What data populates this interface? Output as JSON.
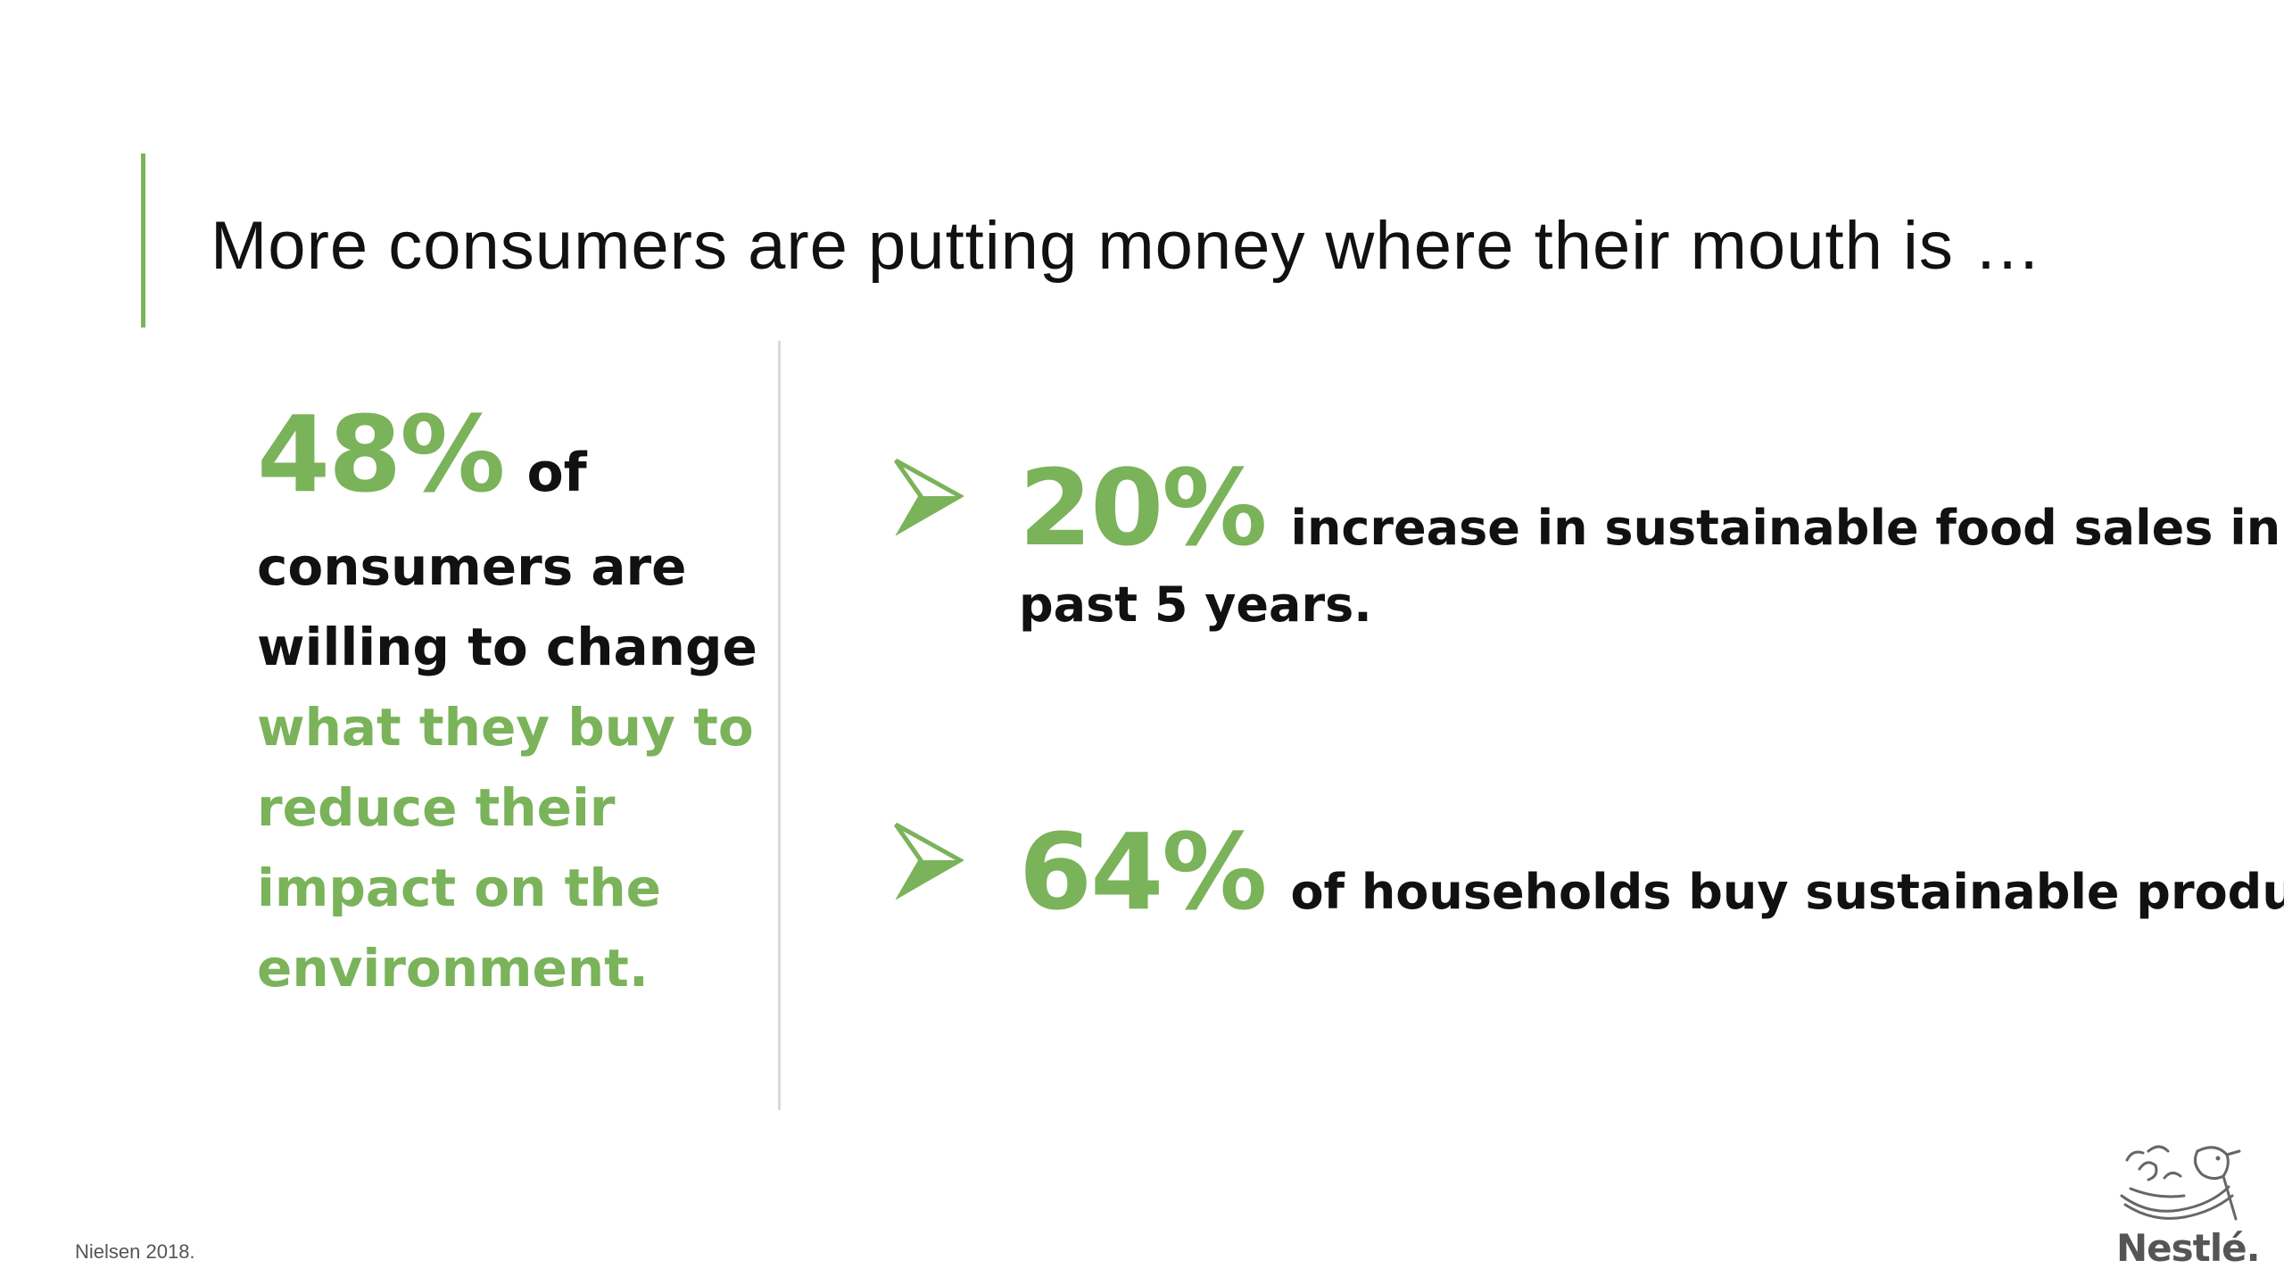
{
  "title": "More consumers are putting money where their mouth is …",
  "left": {
    "stat": "48%",
    "stat_suffix": "of",
    "line1": "consumers are",
    "line2": "willing to change",
    "green_lines": [
      "what they buy to",
      "reduce their",
      "impact on the",
      "environment."
    ]
  },
  "bullets": [
    {
      "stat": "20%",
      "text": "increase in sustainable food sales in the",
      "continuation": "past 5 years."
    },
    {
      "stat": "64%",
      "text": "of  households buy sustainable products."
    }
  ],
  "source": "Nielsen 2018.",
  "logo_text": "Nestlé.",
  "colors": {
    "accent": "#7ab35a",
    "text": "#111111",
    "divider": "#d9d9d9",
    "logo": "#555555"
  },
  "icons": {
    "bullet": "arrowhead-bullet-icon",
    "logo": "nest-birds-logo-icon"
  }
}
